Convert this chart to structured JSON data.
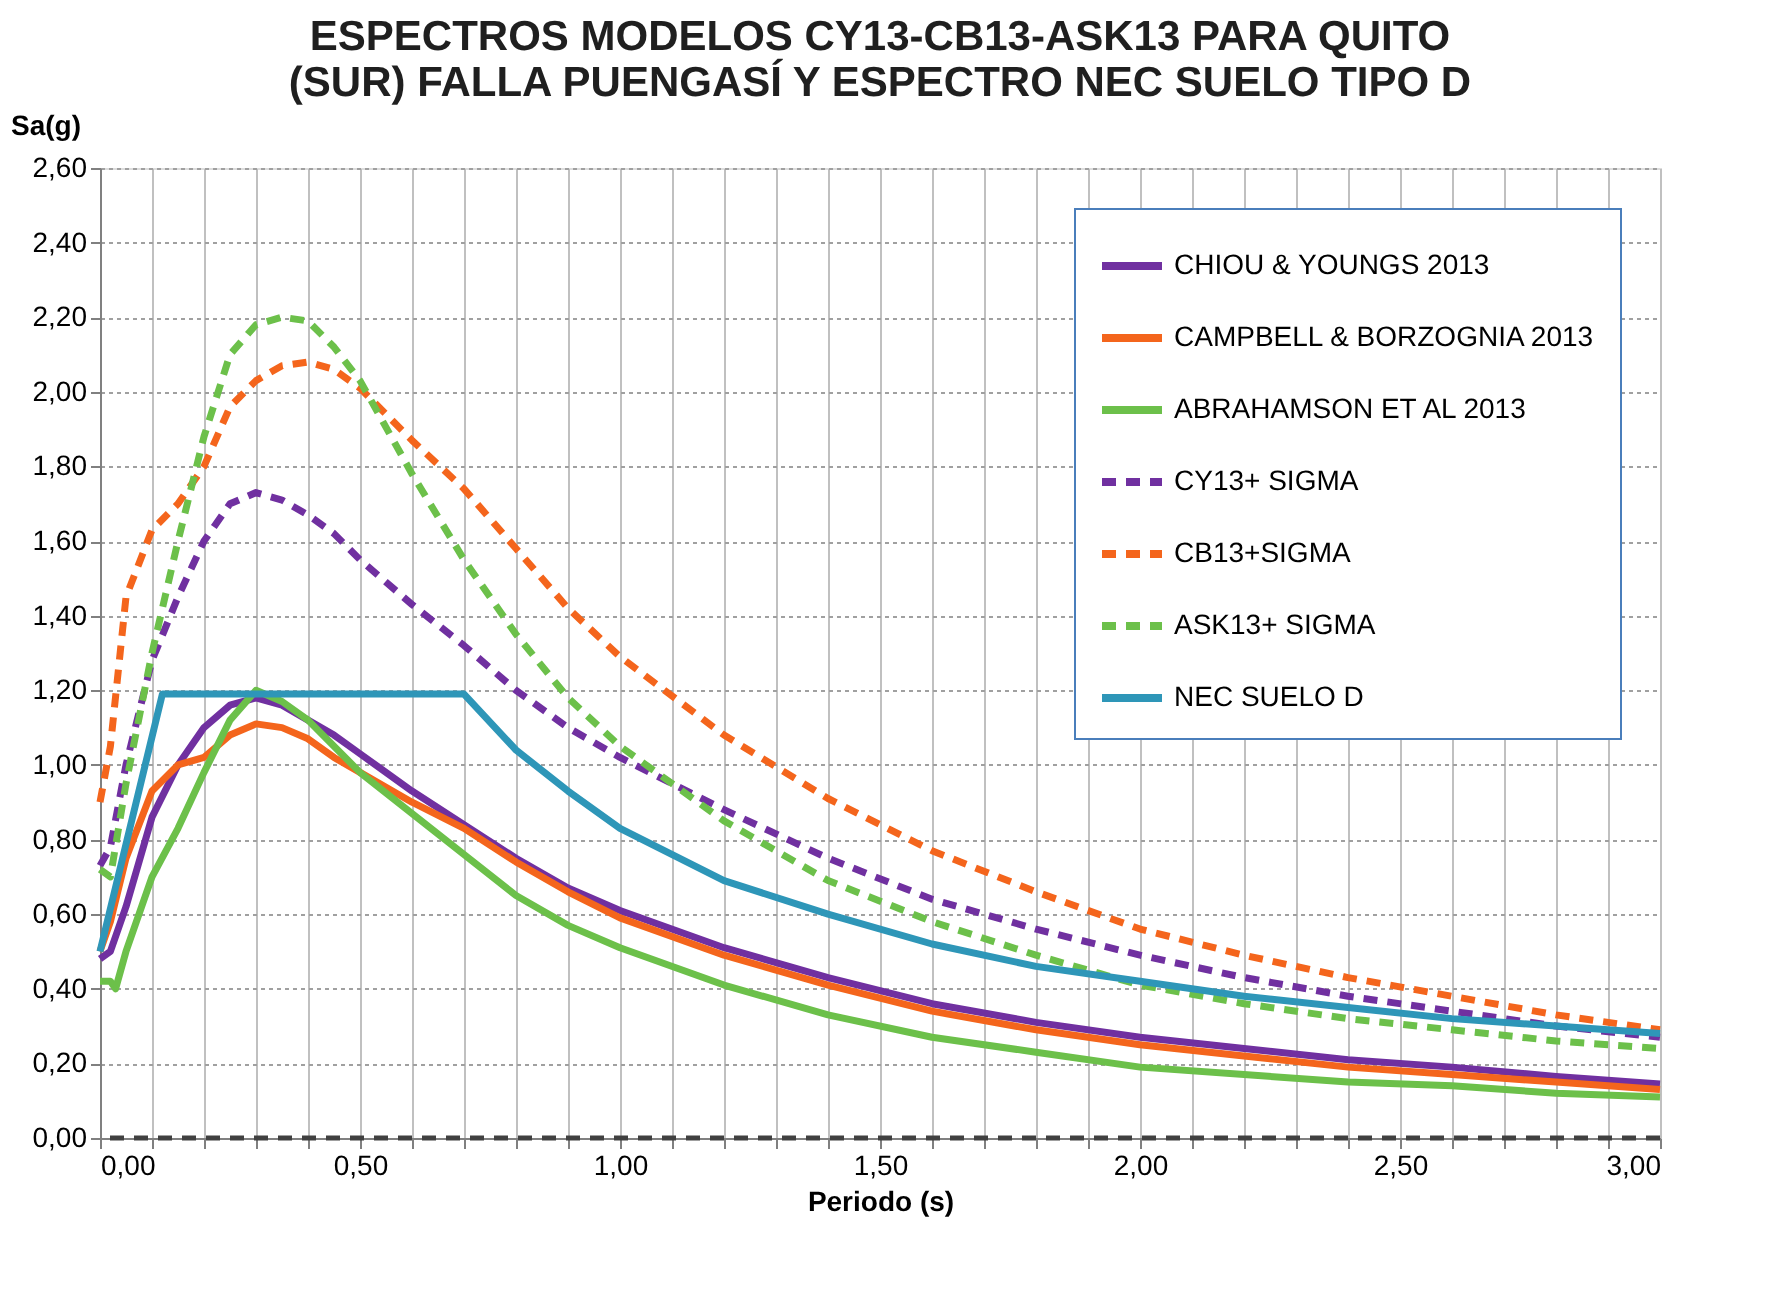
{
  "chart_data": {
    "type": "line",
    "title": [
      "ESPECTROS MODELOS CY13-CB13-ASK13 PARA QUITO",
      "(SUR) FALLA  PUENGASÍ Y ESPECTRO NEC SUELO TIPO D"
    ],
    "xlabel": "Periodo (s)",
    "ylabel": "Sa(g)",
    "xlim": [
      0,
      3
    ],
    "ylim": [
      0,
      2.6
    ],
    "xticks": [
      {
        "value": 0,
        "label": "0,00"
      },
      {
        "value": 0.1,
        "label": null
      },
      {
        "value": 0.2,
        "label": null
      },
      {
        "value": 0.3,
        "label": null
      },
      {
        "value": 0.4,
        "label": null
      },
      {
        "value": 0.5,
        "label": "0,50"
      },
      {
        "value": 0.6,
        "label": null
      },
      {
        "value": 0.7,
        "label": null
      },
      {
        "value": 0.8,
        "label": null
      },
      {
        "value": 0.9,
        "label": null
      },
      {
        "value": 1,
        "label": "1,00"
      },
      {
        "value": 1.1,
        "label": null
      },
      {
        "value": 1.2,
        "label": null
      },
      {
        "value": 1.3,
        "label": null
      },
      {
        "value": 1.4,
        "label": null
      },
      {
        "value": 1.5,
        "label": "1,50"
      },
      {
        "value": 1.6,
        "label": null
      },
      {
        "value": 1.7,
        "label": null
      },
      {
        "value": 1.8,
        "label": null
      },
      {
        "value": 1.9,
        "label": null
      },
      {
        "value": 2,
        "label": "2,00"
      },
      {
        "value": 2.1,
        "label": null
      },
      {
        "value": 2.2,
        "label": null
      },
      {
        "value": 2.3,
        "label": null
      },
      {
        "value": 2.4,
        "label": null
      },
      {
        "value": 2.5,
        "label": "2,50"
      },
      {
        "value": 2.6,
        "label": null
      },
      {
        "value": 2.7,
        "label": null
      },
      {
        "value": 2.8,
        "label": null
      },
      {
        "value": 2.9,
        "label": null
      },
      {
        "value": 3,
        "label": "3,00"
      }
    ],
    "yticks": [
      {
        "value": 0,
        "label": "0,00"
      },
      {
        "value": 0.2,
        "label": "0,20"
      },
      {
        "value": 0.4,
        "label": "0,40"
      },
      {
        "value": 0.6,
        "label": "0,60"
      },
      {
        "value": 0.8,
        "label": "0,80"
      },
      {
        "value": 1,
        "label": "1,00"
      },
      {
        "value": 1.2,
        "label": "1,20"
      },
      {
        "value": 1.4,
        "label": "1,40"
      },
      {
        "value": 1.6,
        "label": "1,60"
      },
      {
        "value": 1.8,
        "label": "1,80"
      },
      {
        "value": 2,
        "label": "2,00"
      },
      {
        "value": 2.2,
        "label": "2,20"
      },
      {
        "value": 2.4,
        "label": "2,40"
      },
      {
        "value": 2.6,
        "label": "2,60"
      }
    ],
    "grid": true,
    "legend": "top right",
    "marker": "none",
    "ref_lines": [
      {
        "axis": "y",
        "value": 0,
        "color": "#404040",
        "line_style": "dashed"
      }
    ],
    "series": [
      {
        "name": "CHIOU & YOUNGS 2013",
        "color": "#7030a0",
        "line_style": "solid",
        "x": [
          0,
          0.02,
          0.05,
          0.1,
          0.15,
          0.2,
          0.25,
          0.3,
          0.35,
          0.4,
          0.45,
          0.5,
          0.6,
          0.7,
          0.8,
          0.9,
          1.0,
          1.2,
          1.4,
          1.6,
          1.8,
          2.0,
          2.2,
          2.4,
          2.6,
          2.8,
          3.0
        ],
        "values": [
          0.48,
          0.5,
          0.62,
          0.86,
          1.0,
          1.1,
          1.16,
          1.18,
          1.16,
          1.12,
          1.08,
          1.03,
          0.93,
          0.84,
          0.75,
          0.67,
          0.61,
          0.51,
          0.43,
          0.36,
          0.31,
          0.27,
          0.24,
          0.21,
          0.19,
          0.165,
          0.145
        ]
      },
      {
        "name": "CAMPBELL & BORZOGNIA 2013",
        "color": "#f4651c",
        "line_style": "solid",
        "x": [
          0,
          0.02,
          0.05,
          0.1,
          0.15,
          0.2,
          0.25,
          0.3,
          0.35,
          0.4,
          0.45,
          0.5,
          0.6,
          0.7,
          0.8,
          0.9,
          1.0,
          1.2,
          1.4,
          1.6,
          1.8,
          2.0,
          2.2,
          2.4,
          2.6,
          2.8,
          3.0
        ],
        "values": [
          0.5,
          0.58,
          0.75,
          0.93,
          1.0,
          1.02,
          1.08,
          1.11,
          1.1,
          1.07,
          1.02,
          0.98,
          0.9,
          0.83,
          0.74,
          0.66,
          0.59,
          0.49,
          0.41,
          0.34,
          0.29,
          0.25,
          0.22,
          0.19,
          0.17,
          0.15,
          0.13
        ]
      },
      {
        "name": "ABRAHAMSON ET AL 2013",
        "color": "#6cc04a",
        "line_style": "solid",
        "x": [
          0,
          0.02,
          0.03,
          0.05,
          0.1,
          0.15,
          0.2,
          0.25,
          0.3,
          0.35,
          0.4,
          0.45,
          0.5,
          0.6,
          0.7,
          0.8,
          0.9,
          1.0,
          1.2,
          1.4,
          1.6,
          1.8,
          2.0,
          2.2,
          2.4,
          2.6,
          2.8,
          3.0
        ],
        "values": [
          0.42,
          0.42,
          0.4,
          0.5,
          0.7,
          0.83,
          0.98,
          1.12,
          1.2,
          1.17,
          1.12,
          1.05,
          0.98,
          0.87,
          0.76,
          0.65,
          0.57,
          0.51,
          0.41,
          0.33,
          0.27,
          0.23,
          0.19,
          0.17,
          0.15,
          0.14,
          0.12,
          0.11
        ]
      },
      {
        "name": "CY13+ SIGMA",
        "color": "#7030a0",
        "line_style": "dashed",
        "x": [
          0,
          0.02,
          0.05,
          0.1,
          0.15,
          0.2,
          0.25,
          0.3,
          0.35,
          0.4,
          0.45,
          0.5,
          0.6,
          0.7,
          0.8,
          0.9,
          1.0,
          1.2,
          1.4,
          1.6,
          1.8,
          2.0,
          2.2,
          2.4,
          2.6,
          2.8,
          3.0
        ],
        "values": [
          0.73,
          0.78,
          1.0,
          1.28,
          1.45,
          1.6,
          1.7,
          1.73,
          1.71,
          1.67,
          1.62,
          1.55,
          1.43,
          1.32,
          1.2,
          1.1,
          1.02,
          0.88,
          0.75,
          0.64,
          0.56,
          0.49,
          0.43,
          0.38,
          0.34,
          0.3,
          0.27
        ]
      },
      {
        "name": "CB13+SIGMA",
        "color": "#f4651c",
        "line_style": "dashed",
        "x": [
          0,
          0.02,
          0.05,
          0.1,
          0.15,
          0.2,
          0.25,
          0.3,
          0.35,
          0.4,
          0.45,
          0.5,
          0.6,
          0.7,
          0.8,
          0.9,
          1.0,
          1.2,
          1.4,
          1.6,
          1.8,
          2.0,
          2.2,
          2.4,
          2.6,
          2.8,
          3.0
        ],
        "values": [
          0.9,
          1.05,
          1.45,
          1.63,
          1.7,
          1.8,
          1.96,
          2.03,
          2.07,
          2.08,
          2.06,
          2.01,
          1.87,
          1.74,
          1.58,
          1.42,
          1.29,
          1.08,
          0.91,
          0.77,
          0.66,
          0.56,
          0.49,
          0.43,
          0.38,
          0.33,
          0.29
        ]
      },
      {
        "name": "ASK13+ SIGMA",
        "color": "#6cc04a",
        "line_style": "dashed",
        "x": [
          0,
          0.02,
          0.05,
          0.1,
          0.15,
          0.2,
          0.25,
          0.3,
          0.35,
          0.4,
          0.45,
          0.5,
          0.6,
          0.7,
          0.8,
          0.9,
          1.0,
          1.2,
          1.4,
          1.6,
          1.8,
          2.0,
          2.2,
          2.4,
          2.6,
          2.8,
          3.0
        ],
        "values": [
          0.72,
          0.7,
          0.95,
          1.3,
          1.6,
          1.88,
          2.1,
          2.18,
          2.2,
          2.19,
          2.12,
          2.03,
          1.78,
          1.55,
          1.35,
          1.18,
          1.05,
          0.85,
          0.69,
          0.58,
          0.49,
          0.41,
          0.36,
          0.32,
          0.29,
          0.26,
          0.24
        ]
      },
      {
        "name": "NEC SUELO D",
        "color": "#2e96b8",
        "line_style": "solid",
        "x": [
          0,
          0.12,
          0.7,
          0.8,
          0.9,
          1.0,
          1.2,
          1.4,
          1.6,
          1.8,
          2.0,
          2.2,
          2.4,
          2.6,
          2.8,
          3.0
        ],
        "values": [
          0.5,
          1.19,
          1.19,
          1.04,
          0.93,
          0.83,
          0.69,
          0.6,
          0.52,
          0.46,
          0.42,
          0.38,
          0.35,
          0.32,
          0.3,
          0.28
        ]
      }
    ]
  }
}
